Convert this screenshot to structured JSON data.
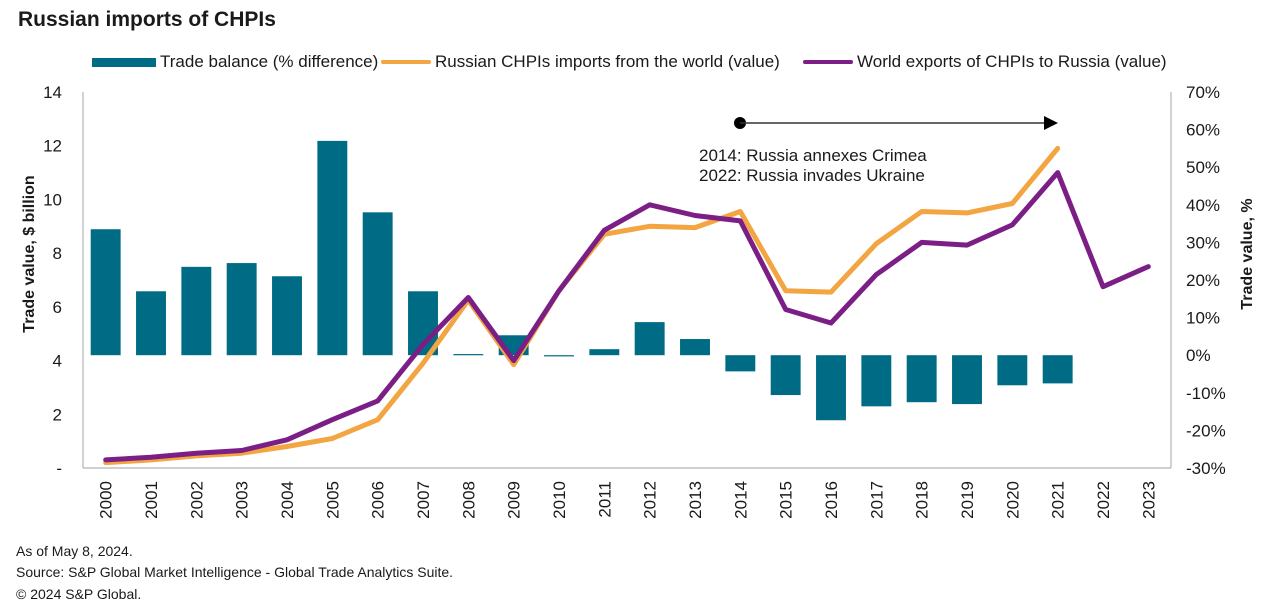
{
  "chart_data": {
    "type": "bar",
    "title": "Russian imports of CHPIs",
    "categories": [
      "2000",
      "2001",
      "2002",
      "2003",
      "2004",
      "2005",
      "2006",
      "2007",
      "2008",
      "2009",
      "2010",
      "2011",
      "2012",
      "2013",
      "2014",
      "2015",
      "2016",
      "2017",
      "2018",
      "2019",
      "2020",
      "2021",
      "2022",
      "2023"
    ],
    "ylabel_left": "Trade value, $ billion",
    "ylabel_right": "Trade value, %",
    "ylim_left": [
      0,
      14
    ],
    "ylim_right": [
      -30,
      70
    ],
    "yticks_left": [
      "-",
      "2",
      "4",
      "6",
      "8",
      "10",
      "12",
      "14"
    ],
    "yticks_left_values": [
      0,
      2,
      4,
      6,
      8,
      10,
      12,
      14
    ],
    "yticks_right": [
      "-30%",
      "-20%",
      "-10%",
      "0%",
      "10%",
      "20%",
      "30%",
      "40%",
      "50%",
      "60%",
      "70%"
    ],
    "yticks_right_values": [
      -30,
      -20,
      -10,
      0,
      10,
      20,
      30,
      40,
      50,
      60,
      70
    ],
    "grid": false,
    "legend_position": "top",
    "series": [
      {
        "name": "Trade balance (% difference)",
        "kind": "bar",
        "axis": "right",
        "color": "#006b85",
        "values": [
          33.5,
          17,
          23.5,
          24.5,
          21,
          57,
          38,
          17,
          0.3,
          5.3,
          -0.3,
          1.6,
          8.8,
          4.3,
          -4.3,
          -10.6,
          -17.3,
          -13.6,
          -12.5,
          -13,
          -8,
          -7.5,
          null,
          null
        ]
      },
      {
        "name": "Russian CHPIs imports from the world (value)",
        "kind": "line",
        "axis": "left",
        "color": "#f2a541",
        "values": [
          0.2,
          0.3,
          0.45,
          0.55,
          0.8,
          1.1,
          1.8,
          3.9,
          6.25,
          3.85,
          6.6,
          8.7,
          9.0,
          8.95,
          9.55,
          6.6,
          6.55,
          8.35,
          9.55,
          9.5,
          9.85,
          11.9,
          null,
          null
        ]
      },
      {
        "name": "World exports of CHPIs to Russia (value)",
        "kind": "line",
        "axis": "left",
        "color": "#7b1f86",
        "values": [
          0.3,
          0.4,
          0.55,
          0.65,
          1.05,
          1.8,
          2.5,
          4.6,
          6.35,
          4.0,
          6.6,
          8.85,
          9.8,
          9.4,
          9.2,
          5.9,
          5.4,
          7.2,
          8.4,
          8.3,
          9.05,
          11.0,
          6.75,
          7.5
        ]
      }
    ],
    "annotation": {
      "from_year": "2014",
      "to_year": "2022",
      "lines": [
        "2014: Russia annexes Crimea",
        "2022: Russia invades Ukraine"
      ]
    }
  },
  "footer": {
    "as_of": "As of May 8, 2024.",
    "source": "Source: S&P Global Market Intelligence - Global Trade Analytics Suite.",
    "copyright": "© 2024 S&P Global."
  }
}
